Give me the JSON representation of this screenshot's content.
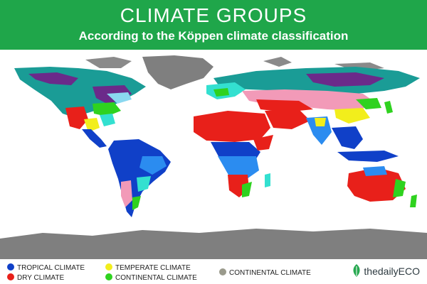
{
  "header": {
    "title": "CLIMATE GROUPS",
    "subtitle": "According to the Köppen climate classification"
  },
  "legend": {
    "items": [
      {
        "label": "TROPICAL CLIMATE",
        "color": "#1040c8"
      },
      {
        "label": "DRY CLIMATE",
        "color": "#e8201a"
      },
      {
        "label": "TEMPERATE CLIMATE",
        "color": "#f2ee1c"
      },
      {
        "label": "CONTINENTAL CLIMATE",
        "color": "#2fd21f"
      },
      {
        "label": "CONTINENTAL CLIMATE",
        "color": "#9a9a8c"
      }
    ]
  },
  "brand": {
    "name": "thedailyECO",
    "icon": "leaf-icon"
  },
  "colors": {
    "header_bg": "#1fa64a",
    "polar_teal": "#1a9c96",
    "polar_grey": "#808080",
    "continental_purple": "#6b2a8a",
    "continental_pink": "#f29ab8",
    "tropical_light": "#2b8cf0",
    "temperate_cyan": "#33e0d0"
  }
}
